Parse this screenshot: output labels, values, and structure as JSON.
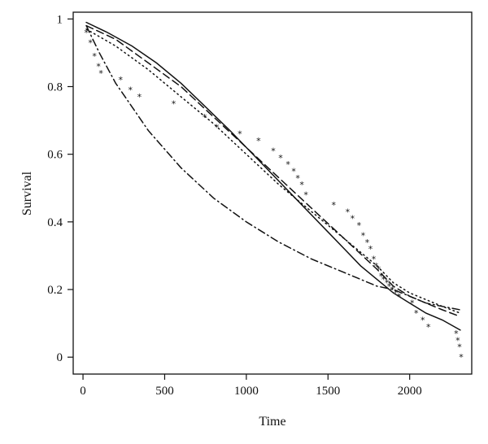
{
  "chart_data": {
    "type": "line",
    "xlabel": "Time",
    "ylabel": "Survival",
    "xlim": [
      -60,
      2380
    ],
    "ylim": [
      -0.05,
      1.02
    ],
    "x_ticks": [
      0,
      500,
      1000,
      1500,
      2000
    ],
    "y_ticks": [
      0,
      0.2,
      0.4,
      0.6,
      0.8,
      1
    ],
    "y_tick_labels": [
      "0",
      "0.2",
      "0.4",
      "0.6",
      "0.8",
      "1"
    ],
    "grid": false,
    "legend": "none",
    "series": [
      {
        "style": "stars",
        "x": [
          20,
          45,
          70,
          95,
          110,
          230,
          290,
          345,
          555,
          745,
          820,
          960,
          1075,
          1165,
          1210,
          1255,
          1290,
          1315,
          1340,
          1365,
          1535,
          1620,
          1650,
          1690,
          1715,
          1740,
          1760,
          1780,
          1795,
          1810,
          1825,
          1840,
          1860,
          1875,
          1895,
          1915,
          1935,
          2015,
          2040,
          2080,
          2115,
          2285,
          2295,
          2305,
          2315
        ],
        "values": [
          0.96,
          0.93,
          0.89,
          0.86,
          0.84,
          0.82,
          0.79,
          0.77,
          0.75,
          0.71,
          0.68,
          0.66,
          0.64,
          0.61,
          0.59,
          0.57,
          0.55,
          0.53,
          0.51,
          0.48,
          0.45,
          0.43,
          0.41,
          0.39,
          0.36,
          0.34,
          0.32,
          0.29,
          0.27,
          0.26,
          0.24,
          0.23,
          0.22,
          0.21,
          0.2,
          0.19,
          0.18,
          0.16,
          0.13,
          0.11,
          0.09,
          0.07,
          0.05,
          0.03,
          0
        ]
      },
      {
        "style": "solid",
        "x": [
          20,
          150,
          300,
          450,
          600,
          750,
          900,
          1000,
          1100,
          1200,
          1300,
          1400,
          1500,
          1600,
          1700,
          1800,
          1900,
          2000,
          2100,
          2200,
          2310
        ],
        "values": [
          0.99,
          0.96,
          0.92,
          0.87,
          0.81,
          0.74,
          0.67,
          0.62,
          0.57,
          0.52,
          0.47,
          0.42,
          0.37,
          0.32,
          0.27,
          0.23,
          0.19,
          0.16,
          0.13,
          0.11,
          0.08
        ]
      },
      {
        "style": "dashed",
        "x": [
          20,
          200,
          400,
          600,
          800,
          1000,
          1200,
          1400,
          1600,
          1800,
          1900,
          2000,
          2100,
          2200,
          2310
        ],
        "values": [
          0.98,
          0.94,
          0.87,
          0.8,
          0.71,
          0.62,
          0.53,
          0.44,
          0.35,
          0.26,
          0.21,
          0.18,
          0.16,
          0.14,
          0.12
        ]
      },
      {
        "style": "dotted",
        "x": [
          20,
          200,
          400,
          600,
          800,
          1000,
          1200,
          1400,
          1600,
          1800,
          1900,
          2000,
          2100,
          2200,
          2310
        ],
        "values": [
          0.97,
          0.92,
          0.85,
          0.77,
          0.69,
          0.6,
          0.51,
          0.43,
          0.35,
          0.27,
          0.22,
          0.19,
          0.17,
          0.15,
          0.13
        ]
      },
      {
        "style": "dash-dot",
        "x": [
          20,
          100,
          200,
          300,
          400,
          600,
          800,
          1000,
          1200,
          1400,
          1600,
          1800,
          1900,
          2000,
          2100,
          2200,
          2310
        ],
        "values": [
          0.98,
          0.9,
          0.81,
          0.74,
          0.67,
          0.56,
          0.47,
          0.4,
          0.34,
          0.29,
          0.25,
          0.21,
          0.2,
          0.18,
          0.16,
          0.15,
          0.14
        ]
      }
    ]
  }
}
